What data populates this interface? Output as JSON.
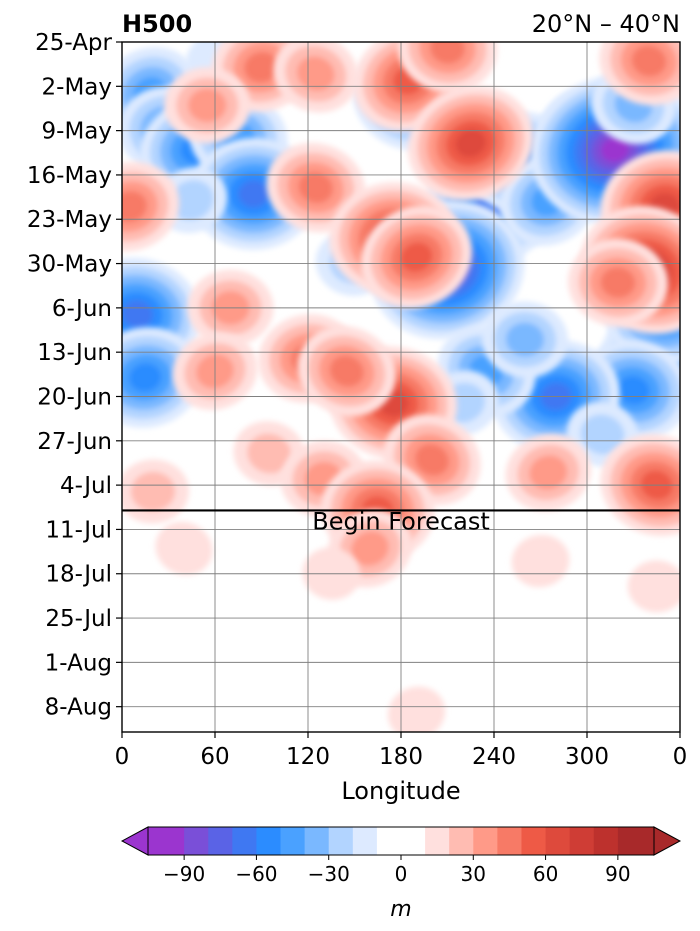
{
  "chart_data": {
    "type": "heatmap",
    "title_left": "H500",
    "title_right": "20°N – 40°N",
    "xlabel": "Longitude",
    "x_ticks": [
      "0",
      "60",
      "120",
      "180",
      "240",
      "300",
      "0"
    ],
    "x_tick_values": [
      0,
      60,
      120,
      180,
      240,
      300,
      360
    ],
    "xlim": [
      0,
      360
    ],
    "y_ticks": [
      "25-Apr",
      "2-May",
      "9-May",
      "16-May",
      "23-May",
      "30-May",
      "6-Jun",
      "13-Jun",
      "20-Jun",
      "27-Jun",
      "4-Jul",
      "11-Jul",
      "18-Jul",
      "25-Jul",
      "1-Aug",
      "8-Aug"
    ],
    "ylim": [
      "25-Apr",
      "12-Aug"
    ],
    "y_inverted": true,
    "forecast_line": {
      "date": "8-Jul",
      "label": "Begin Forecast"
    },
    "grid": true,
    "colorbar": {
      "label": "m",
      "tick_labels": [
        "−90",
        "−60",
        "−30",
        "0",
        "30",
        "60",
        "90"
      ],
      "tick_values": [
        -90,
        -60,
        -30,
        0,
        30,
        60,
        90
      ],
      "levels": [
        -105,
        -90,
        -80,
        -70,
        -60,
        -50,
        -40,
        -30,
        -20,
        -10,
        10,
        20,
        30,
        40,
        50,
        60,
        70,
        80,
        90,
        105
      ],
      "colors": [
        "#9b35cf",
        "#7a4fd8",
        "#5a63e6",
        "#3f78f2",
        "#2b8cff",
        "#4aa1ff",
        "#7ab8ff",
        "#b2d4ff",
        "#ddeaff",
        "#ffffff",
        "#ffe0de",
        "#ffbcb2",
        "#ff9a88",
        "#f77a66",
        "#ee5a46",
        "#de4a3c",
        "#cf3d35",
        "#bd312d",
        "#a8292a"
      ],
      "extend": "both"
    },
    "anomaly_blobs": [
      {
        "lon": 18,
        "date": "3-May",
        "value": -45
      },
      {
        "lon": 30,
        "date": "9-May",
        "value": -50
      },
      {
        "lon": 48,
        "date": "12-May",
        "value": -55
      },
      {
        "lon": 75,
        "date": "10-May",
        "value": -45
      },
      {
        "lon": 85,
        "date": "19-May",
        "value": -65
      },
      {
        "lon": 45,
        "date": "20-May",
        "value": -30
      },
      {
        "lon": 10,
        "date": "7-Jun",
        "value": -70
      },
      {
        "lon": 15,
        "date": "17-Jun",
        "value": -60
      },
      {
        "lon": 185,
        "date": "4-May",
        "value": -55
      },
      {
        "lon": 237,
        "date": "21-May",
        "value": -70
      },
      {
        "lon": 210,
        "date": "31-May",
        "value": -90
      },
      {
        "lon": 148,
        "date": "30-May",
        "value": -30
      },
      {
        "lon": 258,
        "date": "14-May",
        "value": -60
      },
      {
        "lon": 275,
        "date": "20-May",
        "value": -50
      },
      {
        "lon": 305,
        "date": "10-May",
        "value": -60
      },
      {
        "lon": 318,
        "date": "12-May",
        "value": -95
      },
      {
        "lon": 330,
        "date": "5-May",
        "value": -40
      },
      {
        "lon": 345,
        "date": "14-Jun",
        "value": -60
      },
      {
        "lon": 352,
        "date": "6-Jun",
        "value": -70
      },
      {
        "lon": 330,
        "date": "19-Jun",
        "value": -60
      },
      {
        "lon": 280,
        "date": "20-Jun",
        "value": -70
      },
      {
        "lon": 235,
        "date": "16-Jun",
        "value": -45
      },
      {
        "lon": 260,
        "date": "11-Jun",
        "value": -35
      },
      {
        "lon": 220,
        "date": "21-Jun",
        "value": -30
      },
      {
        "lon": 310,
        "date": "26-Jun",
        "value": -30
      },
      {
        "lon": 60,
        "date": "28-Apr",
        "value": -20
      },
      {
        "lon": 185,
        "date": "1-May",
        "value": 50
      },
      {
        "lon": 210,
        "date": "26-Apr",
        "value": 40
      },
      {
        "lon": 90,
        "date": "29-Apr",
        "value": 45
      },
      {
        "lon": 125,
        "date": "30-Apr",
        "value": 30
      },
      {
        "lon": 55,
        "date": "5-May",
        "value": 30
      },
      {
        "lon": 225,
        "date": "11-May",
        "value": 60
      },
      {
        "lon": 340,
        "date": "28-Apr",
        "value": 45
      },
      {
        "lon": 350,
        "date": "21-May",
        "value": 60
      },
      {
        "lon": 340,
        "date": "31-May",
        "value": 70
      },
      {
        "lon": 320,
        "date": "2-Jun",
        "value": 40
      },
      {
        "lon": 5,
        "date": "21-May",
        "value": 40
      },
      {
        "lon": 125,
        "date": "18-May",
        "value": 40
      },
      {
        "lon": 175,
        "date": "26-May",
        "value": 60
      },
      {
        "lon": 190,
        "date": "29-May",
        "value": 50
      },
      {
        "lon": 175,
        "date": "21-Jun",
        "value": 60
      },
      {
        "lon": 120,
        "date": "14-Jun",
        "value": 45
      },
      {
        "lon": 145,
        "date": "16-Jun",
        "value": 45
      },
      {
        "lon": 70,
        "date": "6-Jun",
        "value": 35
      },
      {
        "lon": 60,
        "date": "16-Jun",
        "value": 30
      },
      {
        "lon": 95,
        "date": "29-Jun",
        "value": 25
      },
      {
        "lon": 130,
        "date": "3-Jul",
        "value": 35
      },
      {
        "lon": 200,
        "date": "30-Jun",
        "value": 40
      },
      {
        "lon": 165,
        "date": "8-Jul",
        "value": 50
      },
      {
        "lon": 275,
        "date": "2-Jul",
        "value": 30
      },
      {
        "lon": 345,
        "date": "4-Jul",
        "value": 55
      },
      {
        "lon": 20,
        "date": "5-Jul",
        "value": 20
      },
      {
        "lon": 160,
        "date": "14-Jul",
        "value": 30
      },
      {
        "lon": 135,
        "date": "18-Jul",
        "value": 12
      },
      {
        "lon": 270,
        "date": "16-Jul",
        "value": 12
      },
      {
        "lon": 40,
        "date": "14-Jul",
        "value": 12
      },
      {
        "lon": 345,
        "date": "20-Jul",
        "value": 12
      },
      {
        "lon": 190,
        "date": "9-Aug",
        "value": 12
      }
    ]
  }
}
